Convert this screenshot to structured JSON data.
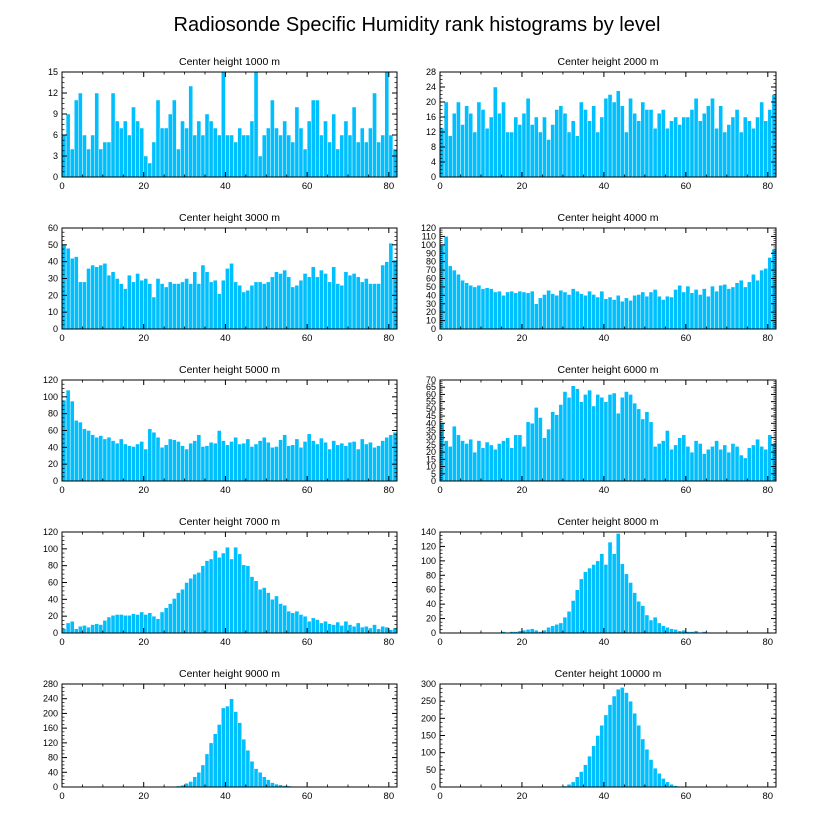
{
  "figure": {
    "title": "Radiosonde Specific Humidity rank histograms by level",
    "bar_color": "#00bfff",
    "bar_edge_color": "#ffffff"
  },
  "chart_data": [
    {
      "type": "bar",
      "title": "Center height 1000 m",
      "xlim": [
        0,
        82
      ],
      "ylim": [
        0,
        15
      ],
      "xticks": [
        0,
        20,
        40,
        60,
        80
      ],
      "xtick_labels": [
        "0",
        "20",
        "40",
        "60",
        "80"
      ],
      "yticks": [
        0,
        3,
        6,
        9,
        12,
        15
      ],
      "ytick_labels": [
        "0",
        "3",
        "6",
        "9",
        "12",
        "15"
      ],
      "values": [
        6,
        9,
        4,
        11,
        12,
        6,
        4,
        6,
        12,
        4,
        5,
        5,
        12,
        8,
        7,
        8,
        6,
        10,
        8,
        7,
        3,
        2,
        5,
        11,
        7,
        7,
        9,
        11,
        4,
        8,
        7,
        13,
        6,
        8,
        6,
        9,
        8,
        7,
        6,
        15,
        6,
        6,
        5,
        7,
        6,
        6,
        8,
        15,
        3,
        6,
        7,
        11,
        7,
        6,
        8,
        6,
        5,
        10,
        7,
        4,
        8,
        11,
        11,
        6,
        8,
        5,
        9,
        4,
        6,
        8,
        6,
        10,
        5,
        7,
        5,
        7,
        12,
        5,
        6,
        15,
        6,
        4
      ]
    },
    {
      "type": "bar",
      "title": "Center height 2000 m",
      "xlim": [
        0,
        82
      ],
      "ylim": [
        0,
        28
      ],
      "xticks": [
        0,
        20,
        40,
        60,
        80
      ],
      "xtick_labels": [
        "0",
        "20",
        "40",
        "60",
        "80"
      ],
      "yticks": [
        0,
        4,
        8,
        12,
        16,
        20,
        24,
        28
      ],
      "ytick_labels": [
        "0",
        "4",
        "8",
        "12",
        "16",
        "20",
        "24",
        "28"
      ],
      "values": [
        13,
        20,
        11,
        17,
        20,
        14,
        19,
        17,
        12,
        20,
        18,
        13,
        16,
        24,
        17,
        20,
        12,
        12,
        16,
        14,
        17,
        21,
        14,
        16,
        12,
        16,
        10,
        14,
        18,
        19,
        17,
        12,
        15,
        11,
        20,
        18,
        15,
        19,
        12,
        16,
        21,
        22,
        20,
        23,
        19,
        12,
        21,
        17,
        15,
        20,
        18,
        18,
        13,
        17,
        18,
        13,
        15,
        16,
        14,
        16,
        16,
        18,
        21,
        15,
        17,
        19,
        21,
        13,
        19,
        12,
        14,
        16,
        18,
        12,
        16,
        15,
        13,
        16,
        20,
        15,
        18,
        22
      ]
    },
    {
      "type": "bar",
      "title": "Center height 3000 m",
      "xlim": [
        0,
        82
      ],
      "ylim": [
        0,
        60
      ],
      "xticks": [
        0,
        20,
        40,
        60,
        80
      ],
      "xtick_labels": [
        "0",
        "20",
        "40",
        "60",
        "80"
      ],
      "yticks": [
        0,
        10,
        20,
        30,
        40,
        50,
        60
      ],
      "ytick_labels": [
        "0",
        "10",
        "20",
        "30",
        "40",
        "50",
        "60"
      ],
      "values": [
        50,
        48,
        42,
        43,
        28,
        28,
        36,
        38,
        37,
        38,
        39,
        32,
        34,
        30,
        27,
        24,
        32,
        28,
        33,
        29,
        30,
        27,
        19,
        30,
        27,
        25,
        28,
        27,
        27,
        28,
        30,
        27,
        34,
        27,
        38,
        34,
        28,
        29,
        21,
        29,
        36,
        39,
        28,
        26,
        22,
        23,
        26,
        28,
        28,
        27,
        28,
        31,
        34,
        33,
        35,
        31,
        25,
        26,
        29,
        33,
        31,
        37,
        31,
        35,
        33,
        28,
        37,
        27,
        26,
        34,
        32,
        33,
        31,
        28,
        30,
        27,
        27,
        27,
        38,
        40,
        51,
        41
      ]
    },
    {
      "type": "bar",
      "title": "Center height 4000 m",
      "xlim": [
        0,
        82
      ],
      "ylim": [
        0,
        120
      ],
      "xticks": [
        0,
        20,
        40,
        60,
        80
      ],
      "xtick_labels": [
        "0",
        "20",
        "40",
        "60",
        "80"
      ],
      "yticks": [
        0,
        10,
        20,
        30,
        40,
        50,
        60,
        70,
        80,
        90,
        100,
        110,
        120
      ],
      "ytick_labels": [
        "0",
        "10",
        "20",
        "30",
        "40",
        "50",
        "60",
        "70",
        "80",
        "90",
        "100",
        "110",
        "120"
      ],
      "values": [
        100,
        110,
        75,
        70,
        65,
        58,
        55,
        52,
        50,
        52,
        48,
        49,
        48,
        44,
        45,
        40,
        44,
        45,
        43,
        45,
        44,
        43,
        45,
        30,
        37,
        41,
        46,
        42,
        40,
        46,
        44,
        41,
        48,
        45,
        42,
        40,
        45,
        41,
        38,
        45,
        36,
        38,
        35,
        40,
        33,
        37,
        34,
        40,
        41,
        44,
        39,
        44,
        47,
        39,
        35,
        39,
        38,
        47,
        52,
        44,
        51,
        43,
        47,
        41,
        48,
        39,
        51,
        45,
        52,
        53,
        48,
        50,
        55,
        58,
        50,
        56,
        65,
        58,
        70,
        72,
        85,
        95
      ]
    },
    {
      "type": "bar",
      "title": "Center height 5000 m",
      "xlim": [
        0,
        82
      ],
      "ylim": [
        0,
        120
      ],
      "xticks": [
        0,
        20,
        40,
        60,
        80
      ],
      "xtick_labels": [
        "0",
        "20",
        "40",
        "60",
        "80"
      ],
      "yticks": [
        0,
        20,
        40,
        60,
        80,
        100,
        120
      ],
      "ytick_labels": [
        "0",
        "20",
        "40",
        "60",
        "80",
        "100",
        "120"
      ],
      "values": [
        96,
        108,
        95,
        72,
        70,
        62,
        60,
        55,
        52,
        54,
        50,
        52,
        48,
        45,
        50,
        44,
        42,
        41,
        44,
        47,
        38,
        62,
        58,
        52,
        40,
        43,
        50,
        49,
        47,
        42,
        38,
        45,
        48,
        55,
        41,
        42,
        46,
        45,
        60,
        48,
        43,
        47,
        52,
        44,
        45,
        50,
        41,
        44,
        48,
        52,
        46,
        40,
        41,
        49,
        55,
        42,
        43,
        50,
        40,
        47,
        56,
        48,
        44,
        51,
        46,
        38,
        48,
        43,
        45,
        42,
        46,
        47,
        38,
        50,
        44,
        46,
        40,
        42,
        48,
        52,
        55,
        58
      ]
    },
    {
      "type": "bar",
      "title": "Center height 6000 m",
      "xlim": [
        0,
        82
      ],
      "ylim": [
        0,
        70
      ],
      "xticks": [
        0,
        20,
        40,
        60,
        80
      ],
      "xtick_labels": [
        "0",
        "20",
        "40",
        "60",
        "80"
      ],
      "yticks": [
        0,
        5,
        10,
        15,
        20,
        25,
        30,
        35,
        40,
        45,
        50,
        55,
        60,
        65,
        70
      ],
      "ytick_labels": [
        "0",
        "5",
        "10",
        "15",
        "20",
        "25",
        "30",
        "35",
        "40",
        "45",
        "50",
        "55",
        "60",
        "65",
        "70"
      ],
      "values": [
        40,
        28,
        24,
        38,
        32,
        28,
        26,
        29,
        20,
        28,
        23,
        27,
        25,
        22,
        26,
        28,
        30,
        23,
        32,
        32,
        24,
        41,
        40,
        51,
        44,
        30,
        36,
        48,
        46,
        53,
        62,
        58,
        66,
        64,
        55,
        60,
        63,
        52,
        60,
        58,
        55,
        60,
        61,
        47,
        58,
        62,
        60,
        54,
        50,
        43,
        48,
        41,
        24,
        26,
        28,
        35,
        22,
        25,
        30,
        32,
        24,
        20,
        28,
        26,
        19,
        22,
        24,
        28,
        22,
        25,
        20,
        26,
        24,
        18,
        16,
        23,
        25,
        29,
        24,
        22,
        32,
        26
      ]
    },
    {
      "type": "bar",
      "title": "Center height 7000 m",
      "xlim": [
        0,
        82
      ],
      "ylim": [
        0,
        120
      ],
      "xticks": [
        0,
        20,
        40,
        60,
        80
      ],
      "xtick_labels": [
        "0",
        "20",
        "40",
        "60",
        "80"
      ],
      "yticks": [
        0,
        20,
        40,
        60,
        80,
        100,
        120
      ],
      "ytick_labels": [
        "0",
        "20",
        "40",
        "60",
        "80",
        "100",
        "120"
      ],
      "values": [
        5,
        12,
        14,
        5,
        8,
        9,
        7,
        10,
        11,
        10,
        15,
        19,
        21,
        22,
        22,
        21,
        21,
        23,
        22,
        25,
        22,
        24,
        20,
        17,
        25,
        30,
        35,
        41,
        48,
        52,
        60,
        65,
        70,
        72,
        80,
        86,
        88,
        98,
        90,
        95,
        102,
        88,
        102,
        94,
        81,
        80,
        67,
        62,
        52,
        54,
        48,
        40,
        44,
        35,
        33,
        26,
        24,
        26,
        22,
        20,
        14,
        18,
        16,
        12,
        14,
        11,
        10,
        13,
        9,
        14,
        10,
        8,
        12,
        7,
        8,
        6,
        10,
        5,
        8,
        7,
        4,
        6
      ]
    },
    {
      "type": "bar",
      "title": "Center height 8000 m",
      "xlim": [
        0,
        82
      ],
      "ylim": [
        0,
        140
      ],
      "xticks": [
        0,
        20,
        40,
        60,
        80
      ],
      "xtick_labels": [
        "0",
        "20",
        "40",
        "60",
        "80"
      ],
      "yticks": [
        0,
        20,
        40,
        60,
        80,
        100,
        120,
        140
      ],
      "ytick_labels": [
        "0",
        "20",
        "40",
        "60",
        "80",
        "100",
        "120",
        "140"
      ],
      "values": [
        0,
        0,
        0,
        0,
        0,
        0,
        0,
        0,
        0,
        0,
        0,
        0,
        0,
        0,
        1,
        2,
        1,
        2,
        2,
        3,
        4,
        5,
        6,
        4,
        2,
        4,
        8,
        10,
        12,
        14,
        22,
        30,
        45,
        60,
        75,
        85,
        90,
        95,
        100,
        110,
        95,
        126,
        110,
        138,
        96,
        82,
        70,
        56,
        44,
        38,
        25,
        18,
        22,
        14,
        10,
        8,
        6,
        5,
        3,
        4,
        2,
        2,
        3,
        1,
        2,
        1,
        1,
        0,
        1,
        0,
        0,
        0,
        1,
        0,
        0,
        0,
        0,
        0,
        0,
        0,
        0,
        0
      ]
    },
    {
      "type": "bar",
      "title": "Center height 9000 m",
      "xlim": [
        0,
        82
      ],
      "ylim": [
        0,
        280
      ],
      "xticks": [
        0,
        20,
        40,
        60,
        80
      ],
      "xtick_labels": [
        "0",
        "20",
        "40",
        "60",
        "80"
      ],
      "yticks": [
        0,
        40,
        80,
        120,
        160,
        200,
        240,
        280
      ],
      "ytick_labels": [
        "0",
        "40",
        "80",
        "120",
        "160",
        "200",
        "240",
        "280"
      ],
      "values": [
        0,
        0,
        0,
        0,
        0,
        0,
        0,
        0,
        0,
        0,
        0,
        0,
        0,
        0,
        0,
        0,
        0,
        0,
        0,
        0,
        0,
        0,
        0,
        0,
        0,
        0,
        0,
        1,
        3,
        5,
        10,
        15,
        28,
        40,
        60,
        90,
        120,
        145,
        170,
        215,
        220,
        240,
        205,
        175,
        130,
        100,
        70,
        50,
        40,
        28,
        20,
        12,
        8,
        6,
        4,
        3,
        2,
        1,
        1,
        0,
        0,
        0,
        0,
        0,
        0,
        0,
        0,
        0,
        0,
        0,
        0,
        0,
        0,
        0,
        0,
        0,
        0,
        0,
        0,
        0,
        0,
        0
      ]
    },
    {
      "type": "bar",
      "title": "Center height 10000 m",
      "xlim": [
        0,
        82
      ],
      "ylim": [
        0,
        300
      ],
      "xticks": [
        0,
        20,
        40,
        60,
        80
      ],
      "xtick_labels": [
        "0",
        "20",
        "40",
        "60",
        "80"
      ],
      "yticks": [
        0,
        50,
        100,
        150,
        200,
        250,
        300
      ],
      "ytick_labels": [
        "0",
        "50",
        "100",
        "150",
        "200",
        "250",
        "300"
      ],
      "values": [
        0,
        0,
        0,
        0,
        0,
        0,
        0,
        0,
        0,
        0,
        0,
        0,
        0,
        0,
        0,
        0,
        0,
        0,
        0,
        0,
        0,
        0,
        0,
        0,
        0,
        0,
        0,
        0,
        0,
        1,
        3,
        8,
        15,
        30,
        45,
        65,
        90,
        120,
        150,
        180,
        210,
        240,
        265,
        285,
        290,
        275,
        250,
        215,
        180,
        140,
        110,
        80,
        55,
        40,
        25,
        15,
        8,
        4,
        2,
        1,
        0,
        0,
        0,
        0,
        0,
        0,
        0,
        0,
        0,
        0,
        0,
        0,
        0,
        0,
        0,
        0,
        0,
        0,
        0,
        0,
        0,
        0
      ]
    }
  ]
}
